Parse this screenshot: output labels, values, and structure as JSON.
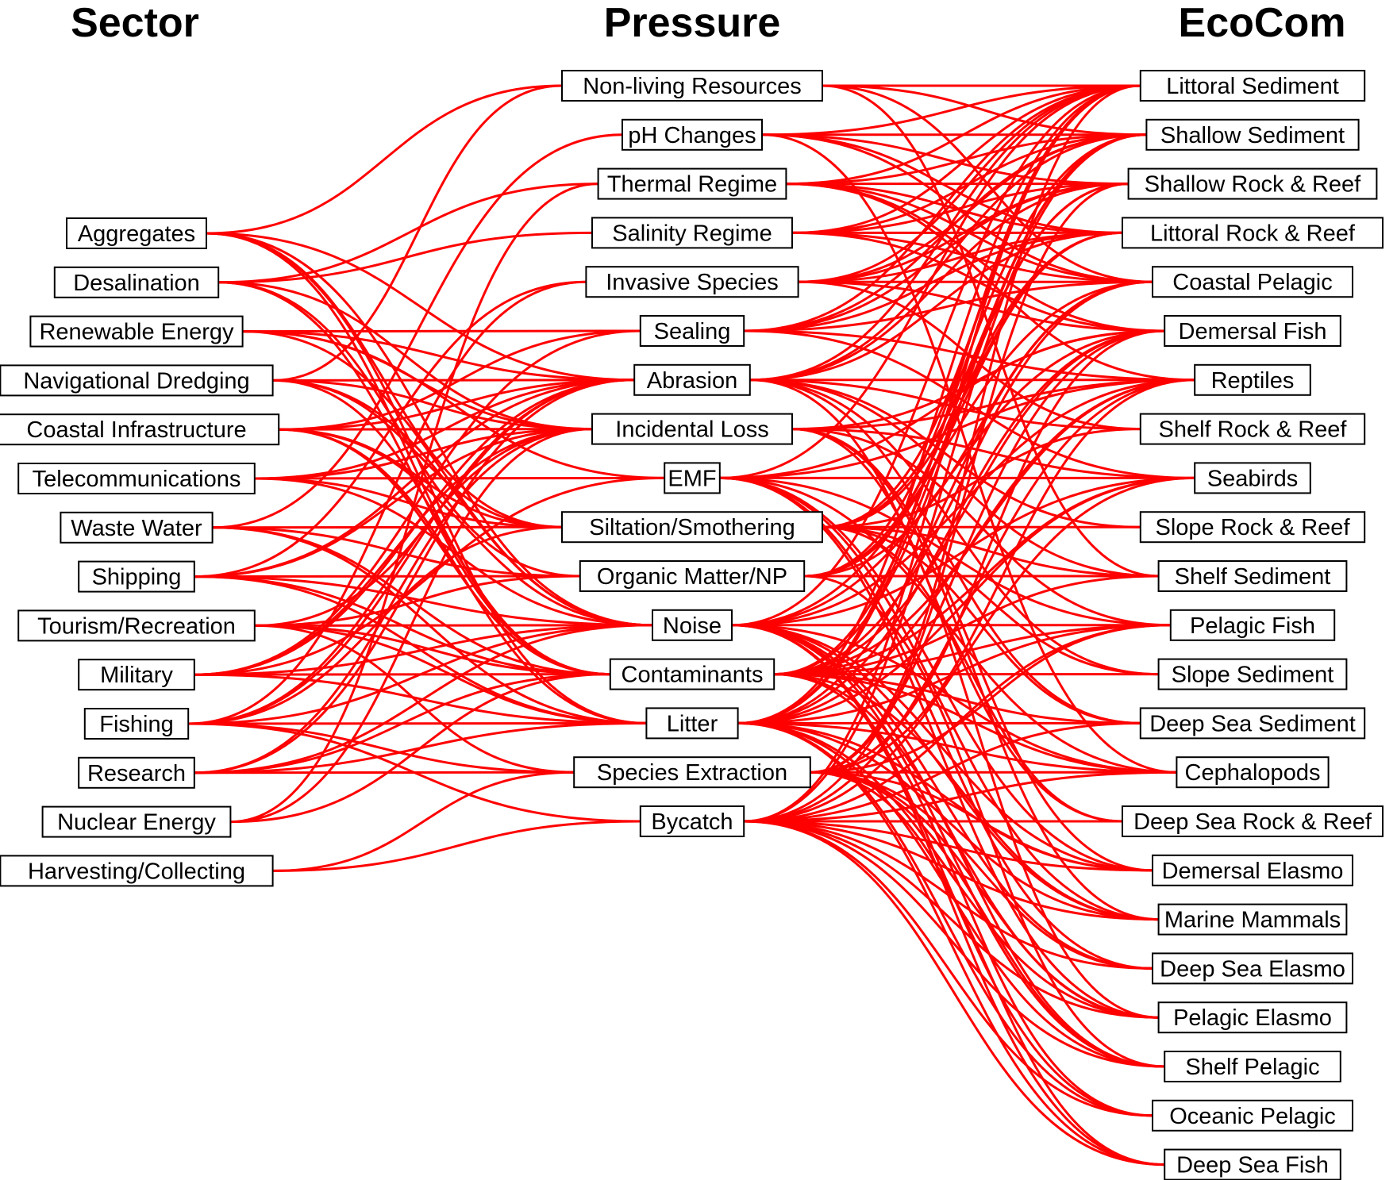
{
  "columns": {
    "sector": {
      "title": "Sector",
      "nodes": [
        "Aggregates",
        "Desalination",
        "Renewable Energy",
        "Navigational Dredging",
        "Coastal Infrastructure",
        "Telecommunications",
        "Waste Water",
        "Shipping",
        "Tourism/Recreation",
        "Military",
        "Fishing",
        "Research",
        "Nuclear Energy",
        "Harvesting/Collecting"
      ]
    },
    "pressure": {
      "title": "Pressure",
      "nodes": [
        "Non-living Resources",
        "pH Changes",
        "Thermal Regime",
        "Salinity Regime",
        "Invasive Species",
        "Sealing",
        "Abrasion",
        "Incidental Loss",
        "EMF",
        "Siltation/Smothering",
        "Organic Matter/NP",
        "Noise",
        "Contaminants",
        "Litter",
        "Species Extraction",
        "Bycatch"
      ]
    },
    "ecocom": {
      "title": "EcoCom",
      "nodes": [
        "Littoral Sediment",
        "Shallow Sediment",
        "Shallow Rock & Reef",
        "Littoral Rock & Reef",
        "Coastal Pelagic",
        "Demersal Fish",
        "Reptiles",
        "Shelf Rock & Reef",
        "Seabirds",
        "Slope Rock & Reef",
        "Shelf Sediment",
        "Pelagic Fish",
        "Slope Sediment",
        "Deep Sea Sediment",
        "Cephalopods",
        "Deep Sea Rock & Reef",
        "Demersal Elasmo",
        "Marine Mammals",
        "Deep Sea Elasmo",
        "Pelagic Elasmo",
        "Shelf Pelagic",
        "Oceanic Pelagic",
        "Deep Sea Fish"
      ]
    }
  },
  "links_sector_pressure": [
    [
      "Aggregates",
      "Non-living Resources"
    ],
    [
      "Aggregates",
      "Abrasion"
    ],
    [
      "Aggregates",
      "Noise"
    ],
    [
      "Aggregates",
      "Litter"
    ],
    [
      "Aggregates",
      "Contaminants"
    ],
    [
      "Aggregates",
      "Siltation/Smothering"
    ],
    [
      "Desalination",
      "Salinity Regime"
    ],
    [
      "Desalination",
      "Thermal Regime"
    ],
    [
      "Desalination",
      "Organic Matter/NP"
    ],
    [
      "Desalination",
      "Contaminants"
    ],
    [
      "Desalination",
      "Incidental Loss"
    ],
    [
      "Renewable Energy",
      "EMF"
    ],
    [
      "Renewable Energy",
      "Noise"
    ],
    [
      "Renewable Energy",
      "Sealing"
    ],
    [
      "Renewable Energy",
      "Incidental Loss"
    ],
    [
      "Renewable Energy",
      "Abrasion"
    ],
    [
      "Navigational Dredging",
      "Non-living Resources"
    ],
    [
      "Navigational Dredging",
      "Abrasion"
    ],
    [
      "Navigational Dredging",
      "Siltation/Smothering"
    ],
    [
      "Navigational Dredging",
      "Noise"
    ],
    [
      "Navigational Dredging",
      "Contaminants"
    ],
    [
      "Navigational Dredging",
      "Incidental Loss"
    ],
    [
      "Coastal Infrastructure",
      "Sealing"
    ],
    [
      "Coastal Infrastructure",
      "Abrasion"
    ],
    [
      "Coastal Infrastructure",
      "Incidental Loss"
    ],
    [
      "Coastal Infrastructure",
      "Noise"
    ],
    [
      "Coastal Infrastructure",
      "Siltation/Smothering"
    ],
    [
      "Coastal Infrastructure",
      "Contaminants"
    ],
    [
      "Coastal Infrastructure",
      "Litter"
    ],
    [
      "Telecommunications",
      "EMF"
    ],
    [
      "Telecommunications",
      "Abrasion"
    ],
    [
      "Telecommunications",
      "Noise"
    ],
    [
      "Telecommunications",
      "Incidental Loss"
    ],
    [
      "Telecommunications",
      "Siltation/Smothering"
    ],
    [
      "Waste Water",
      "pH Changes"
    ],
    [
      "Waste Water",
      "Organic Matter/NP"
    ],
    [
      "Waste Water",
      "Contaminants"
    ],
    [
      "Waste Water",
      "Litter"
    ],
    [
      "Waste Water",
      "Siltation/Smothering"
    ],
    [
      "Shipping",
      "Invasive Species"
    ],
    [
      "Shipping",
      "Noise"
    ],
    [
      "Shipping",
      "Contaminants"
    ],
    [
      "Shipping",
      "Litter"
    ],
    [
      "Shipping",
      "Abrasion"
    ],
    [
      "Shipping",
      "Incidental Loss"
    ],
    [
      "Shipping",
      "Organic Matter/NP"
    ],
    [
      "Tourism/Recreation",
      "Litter"
    ],
    [
      "Tourism/Recreation",
      "Noise"
    ],
    [
      "Tourism/Recreation",
      "Contaminants"
    ],
    [
      "Tourism/Recreation",
      "Abrasion"
    ],
    [
      "Tourism/Recreation",
      "Species Extraction"
    ],
    [
      "Tourism/Recreation",
      "Organic Matter/NP"
    ],
    [
      "Military",
      "Noise"
    ],
    [
      "Military",
      "Contaminants"
    ],
    [
      "Military",
      "Litter"
    ],
    [
      "Military",
      "Abrasion"
    ],
    [
      "Military",
      "EMF"
    ],
    [
      "Military",
      "Incidental Loss"
    ],
    [
      "Military",
      "Sealing"
    ],
    [
      "Fishing",
      "Species Extraction"
    ],
    [
      "Fishing",
      "Bycatch"
    ],
    [
      "Fishing",
      "Abrasion"
    ],
    [
      "Fishing",
      "Litter"
    ],
    [
      "Fishing",
      "Noise"
    ],
    [
      "Fishing",
      "Incidental Loss"
    ],
    [
      "Fishing",
      "Invasive Species"
    ],
    [
      "Fishing",
      "Siltation/Smothering"
    ],
    [
      "Research",
      "Species Extraction"
    ],
    [
      "Research",
      "Noise"
    ],
    [
      "Research",
      "Abrasion"
    ],
    [
      "Research",
      "Litter"
    ],
    [
      "Research",
      "Contaminants"
    ],
    [
      "Research",
      "Incidental Loss"
    ],
    [
      "Nuclear Energy",
      "Thermal Regime"
    ],
    [
      "Nuclear Energy",
      "Contaminants"
    ],
    [
      "Nuclear Energy",
      "Incidental Loss"
    ],
    [
      "Harvesting/Collecting",
      "Species Extraction"
    ],
    [
      "Harvesting/Collecting",
      "Bycatch"
    ]
  ],
  "links_pressure_ecocom": [
    [
      "Non-living Resources",
      "Littoral Sediment"
    ],
    [
      "Non-living Resources",
      "Shallow Sediment"
    ],
    [
      "Non-living Resources",
      "Shelf Sediment"
    ],
    [
      "Non-living Resources",
      "Coastal Pelagic"
    ],
    [
      "pH Changes",
      "Littoral Sediment"
    ],
    [
      "pH Changes",
      "Shallow Sediment"
    ],
    [
      "pH Changes",
      "Shallow Rock & Reef"
    ],
    [
      "pH Changes",
      "Littoral Rock & Reef"
    ],
    [
      "pH Changes",
      "Coastal Pelagic"
    ],
    [
      "pH Changes",
      "Cephalopods"
    ],
    [
      "Thermal Regime",
      "Littoral Sediment"
    ],
    [
      "Thermal Regime",
      "Shallow Sediment"
    ],
    [
      "Thermal Regime",
      "Shallow Rock & Reef"
    ],
    [
      "Thermal Regime",
      "Littoral Rock & Reef"
    ],
    [
      "Thermal Regime",
      "Coastal Pelagic"
    ],
    [
      "Thermal Regime",
      "Demersal Fish"
    ],
    [
      "Thermal Regime",
      "Reptiles"
    ],
    [
      "Salinity Regime",
      "Littoral Sediment"
    ],
    [
      "Salinity Regime",
      "Shallow Sediment"
    ],
    [
      "Salinity Regime",
      "Shallow Rock & Reef"
    ],
    [
      "Salinity Regime",
      "Littoral Rock & Reef"
    ],
    [
      "Salinity Regime",
      "Coastal Pelagic"
    ],
    [
      "Salinity Regime",
      "Demersal Fish"
    ],
    [
      "Invasive Species",
      "Littoral Sediment"
    ],
    [
      "Invasive Species",
      "Shallow Sediment"
    ],
    [
      "Invasive Species",
      "Shallow Rock & Reef"
    ],
    [
      "Invasive Species",
      "Littoral Rock & Reef"
    ],
    [
      "Invasive Species",
      "Coastal Pelagic"
    ],
    [
      "Invasive Species",
      "Shelf Rock & Reef"
    ],
    [
      "Invasive Species",
      "Demersal Fish"
    ],
    [
      "Sealing",
      "Littoral Sediment"
    ],
    [
      "Sealing",
      "Shallow Sediment"
    ],
    [
      "Sealing",
      "Shallow Rock & Reef"
    ],
    [
      "Sealing",
      "Littoral Rock & Reef"
    ],
    [
      "Sealing",
      "Coastal Pelagic"
    ],
    [
      "Sealing",
      "Reptiles"
    ],
    [
      "Sealing",
      "Seabirds"
    ],
    [
      "Abrasion",
      "Littoral Sediment"
    ],
    [
      "Abrasion",
      "Shallow Sediment"
    ],
    [
      "Abrasion",
      "Shallow Rock & Reef"
    ],
    [
      "Abrasion",
      "Littoral Rock & Reef"
    ],
    [
      "Abrasion",
      "Shelf Rock & Reef"
    ],
    [
      "Abrasion",
      "Slope Rock & Reef"
    ],
    [
      "Abrasion",
      "Shelf Sediment"
    ],
    [
      "Abrasion",
      "Slope Sediment"
    ],
    [
      "Abrasion",
      "Deep Sea Sediment"
    ],
    [
      "Abrasion",
      "Deep Sea Rock & Reef"
    ],
    [
      "Abrasion",
      "Reptiles"
    ],
    [
      "Incidental Loss",
      "Reptiles"
    ],
    [
      "Incidental Loss",
      "Seabirds"
    ],
    [
      "Incidental Loss",
      "Marine Mammals"
    ],
    [
      "Incidental Loss",
      "Demersal Fish"
    ],
    [
      "Incidental Loss",
      "Pelagic Fish"
    ],
    [
      "Incidental Loss",
      "Demersal Elasmo"
    ],
    [
      "Incidental Loss",
      "Pelagic Elasmo"
    ],
    [
      "EMF",
      "Demersal Fish"
    ],
    [
      "EMF",
      "Reptiles"
    ],
    [
      "EMF",
      "Seabirds"
    ],
    [
      "EMF",
      "Pelagic Fish"
    ],
    [
      "EMF",
      "Cephalopods"
    ],
    [
      "EMF",
      "Demersal Elasmo"
    ],
    [
      "EMF",
      "Marine Mammals"
    ],
    [
      "EMF",
      "Deep Sea Elasmo"
    ],
    [
      "EMF",
      "Pelagic Elasmo"
    ],
    [
      "EMF",
      "Littoral Sediment"
    ],
    [
      "Siltation/Smothering",
      "Littoral Sediment"
    ],
    [
      "Siltation/Smothering",
      "Shallow Sediment"
    ],
    [
      "Siltation/Smothering",
      "Shallow Rock & Reef"
    ],
    [
      "Siltation/Smothering",
      "Littoral Rock & Reef"
    ],
    [
      "Siltation/Smothering",
      "Shelf Rock & Reef"
    ],
    [
      "Siltation/Smothering",
      "Slope Rock & Reef"
    ],
    [
      "Siltation/Smothering",
      "Shelf Sediment"
    ],
    [
      "Siltation/Smothering",
      "Slope Sediment"
    ],
    [
      "Siltation/Smothering",
      "Deep Sea Sediment"
    ],
    [
      "Siltation/Smothering",
      "Deep Sea Rock & Reef"
    ],
    [
      "Organic Matter/NP",
      "Littoral Sediment"
    ],
    [
      "Organic Matter/NP",
      "Shallow Sediment"
    ],
    [
      "Organic Matter/NP",
      "Coastal Pelagic"
    ],
    [
      "Organic Matter/NP",
      "Shelf Sediment"
    ],
    [
      "Organic Matter/NP",
      "Shelf Pelagic"
    ],
    [
      "Organic Matter/NP",
      "Littoral Rock & Reef"
    ],
    [
      "Organic Matter/NP",
      "Shallow Rock & Reef"
    ],
    [
      "Noise",
      "Demersal Fish"
    ],
    [
      "Noise",
      "Reptiles"
    ],
    [
      "Noise",
      "Seabirds"
    ],
    [
      "Noise",
      "Pelagic Fish"
    ],
    [
      "Noise",
      "Cephalopods"
    ],
    [
      "Noise",
      "Demersal Elasmo"
    ],
    [
      "Noise",
      "Marine Mammals"
    ],
    [
      "Noise",
      "Deep Sea Elasmo"
    ],
    [
      "Noise",
      "Pelagic Elasmo"
    ],
    [
      "Noise",
      "Shelf Pelagic"
    ],
    [
      "Noise",
      "Oceanic Pelagic"
    ],
    [
      "Noise",
      "Deep Sea Fish"
    ],
    [
      "Noise",
      "Littoral Sediment"
    ],
    [
      "Noise",
      "Coastal Pelagic"
    ],
    [
      "Contaminants",
      "Littoral Sediment"
    ],
    [
      "Contaminants",
      "Shallow Sediment"
    ],
    [
      "Contaminants",
      "Coastal Pelagic"
    ],
    [
      "Contaminants",
      "Demersal Fish"
    ],
    [
      "Contaminants",
      "Reptiles"
    ],
    [
      "Contaminants",
      "Seabirds"
    ],
    [
      "Contaminants",
      "Shelf Sediment"
    ],
    [
      "Contaminants",
      "Pelagic Fish"
    ],
    [
      "Contaminants",
      "Slope Sediment"
    ],
    [
      "Contaminants",
      "Deep Sea Sediment"
    ],
    [
      "Contaminants",
      "Cephalopods"
    ],
    [
      "Contaminants",
      "Marine Mammals"
    ],
    [
      "Contaminants",
      "Shelf Pelagic"
    ],
    [
      "Contaminants",
      "Oceanic Pelagic"
    ],
    [
      "Litter",
      "Littoral Sediment"
    ],
    [
      "Litter",
      "Shallow Sediment"
    ],
    [
      "Litter",
      "Coastal Pelagic"
    ],
    [
      "Litter",
      "Demersal Fish"
    ],
    [
      "Litter",
      "Reptiles"
    ],
    [
      "Litter",
      "Seabirds"
    ],
    [
      "Litter",
      "Pelagic Fish"
    ],
    [
      "Litter",
      "Deep Sea Sediment"
    ],
    [
      "Litter",
      "Cephalopods"
    ],
    [
      "Litter",
      "Demersal Elasmo"
    ],
    [
      "Litter",
      "Marine Mammals"
    ],
    [
      "Litter",
      "Pelagic Elasmo"
    ],
    [
      "Litter",
      "Shelf Pelagic"
    ],
    [
      "Litter",
      "Oceanic Pelagic"
    ],
    [
      "Litter",
      "Deep Sea Fish"
    ],
    [
      "Litter",
      "Littoral Rock & Reef"
    ],
    [
      "Species Extraction",
      "Demersal Fish"
    ],
    [
      "Species Extraction",
      "Reptiles"
    ],
    [
      "Species Extraction",
      "Pelagic Fish"
    ],
    [
      "Species Extraction",
      "Cephalopods"
    ],
    [
      "Species Extraction",
      "Demersal Elasmo"
    ],
    [
      "Species Extraction",
      "Deep Sea Elasmo"
    ],
    [
      "Species Extraction",
      "Pelagic Elasmo"
    ],
    [
      "Species Extraction",
      "Shelf Pelagic"
    ],
    [
      "Species Extraction",
      "Deep Sea Fish"
    ],
    [
      "Species Extraction",
      "Littoral Sediment"
    ],
    [
      "Species Extraction",
      "Shallow Rock & Reef"
    ],
    [
      "Bycatch",
      "Littoral Sediment"
    ],
    [
      "Bycatch",
      "Shallow Sediment"
    ],
    [
      "Bycatch",
      "Reptiles"
    ],
    [
      "Bycatch",
      "Seabirds"
    ],
    [
      "Bycatch",
      "Demersal Fish"
    ],
    [
      "Bycatch",
      "Pelagic Fish"
    ],
    [
      "Bycatch",
      "Cephalopods"
    ],
    [
      "Bycatch",
      "Demersal Elasmo"
    ],
    [
      "Bycatch",
      "Marine Mammals"
    ],
    [
      "Bycatch",
      "Deep Sea Elasmo"
    ],
    [
      "Bycatch",
      "Pelagic Elasmo"
    ],
    [
      "Bycatch",
      "Shelf Pelagic"
    ],
    [
      "Bycatch",
      "Oceanic Pelagic"
    ],
    [
      "Bycatch",
      "Deep Sea Fish"
    ],
    [
      "Bycatch",
      "Deep Sea Sediment"
    ],
    [
      "Bycatch",
      "Deep Sea Rock & Reef"
    ]
  ],
  "colors": {
    "link": "#ff0000",
    "box_border": "#000000",
    "text": "#000000"
  }
}
